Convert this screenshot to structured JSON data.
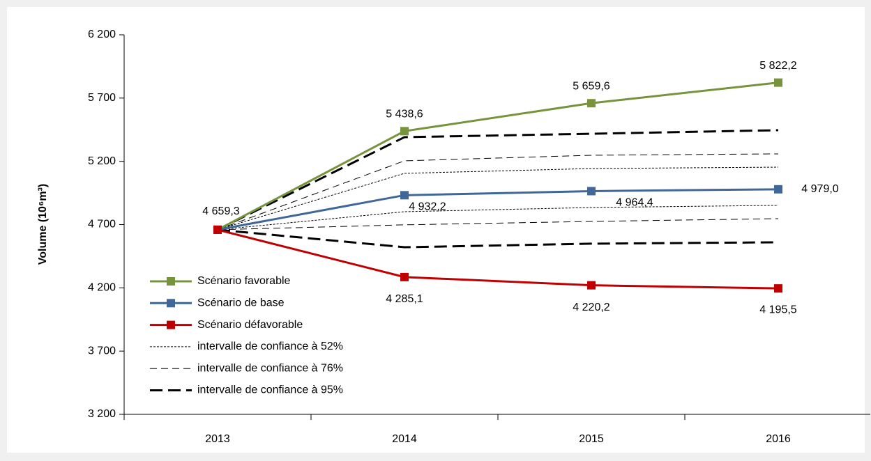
{
  "chart_data": {
    "type": "line",
    "y_label": "Volume (10⁶m³)",
    "categories": [
      "2013",
      "2014",
      "2015",
      "2016"
    ],
    "ylim": [
      3200,
      6200
    ],
    "yticks": [
      {
        "value": 3200,
        "label": "3 200"
      },
      {
        "value": 3700,
        "label": "3 700"
      },
      {
        "value": 4200,
        "label": "4 200"
      },
      {
        "value": 4700,
        "label": "4 700"
      },
      {
        "value": 5200,
        "label": "5 200"
      },
      {
        "value": 5700,
        "label": "5 700"
      },
      {
        "value": 6200,
        "label": "6 200"
      }
    ],
    "series": [
      {
        "name": "Scénario favorable",
        "color": "#77933c",
        "values": [
          4659.3,
          5438.6,
          5659.6,
          5822.2
        ],
        "value_labels": [
          null,
          "5 438,6",
          "5 659,6",
          "5 822,2"
        ]
      },
      {
        "name": "Scénario de base",
        "color": "#3f6797",
        "values": [
          4659.3,
          4932.2,
          4964.4,
          4979.0
        ],
        "value_labels": [
          "4 659,3",
          "4 932,2",
          "4 964,4",
          "4 979,0"
        ]
      },
      {
        "name": "Scénario défavorable",
        "color": "#c00000",
        "values": [
          4659.3,
          4285.1,
          4220.2,
          4195.5
        ],
        "value_labels": [
          null,
          "4 285,1",
          "4 220,2",
          "4 195,5"
        ]
      }
    ],
    "intervals": [
      {
        "name": "intervalle de confiance à 52%",
        "dash": "3,2",
        "width": 1,
        "upper": [
          4659.3,
          5105,
          5143,
          5154
        ],
        "lower": [
          4659.3,
          4802,
          4835,
          4852
        ]
      },
      {
        "name": "intervalle de confiance à 76%",
        "dash": "10,6",
        "width": 1,
        "upper": [
          4659.3,
          5204,
          5248,
          5259
        ],
        "lower": [
          4659.3,
          4698,
          4725,
          4747
        ]
      },
      {
        "name": "intervalle de confiance à 95%",
        "dash": "18,8",
        "width": 3,
        "upper": [
          4659.3,
          5391,
          5418,
          5446
        ],
        "lower": [
          4659.3,
          4521,
          4549,
          4560
        ]
      }
    ]
  }
}
